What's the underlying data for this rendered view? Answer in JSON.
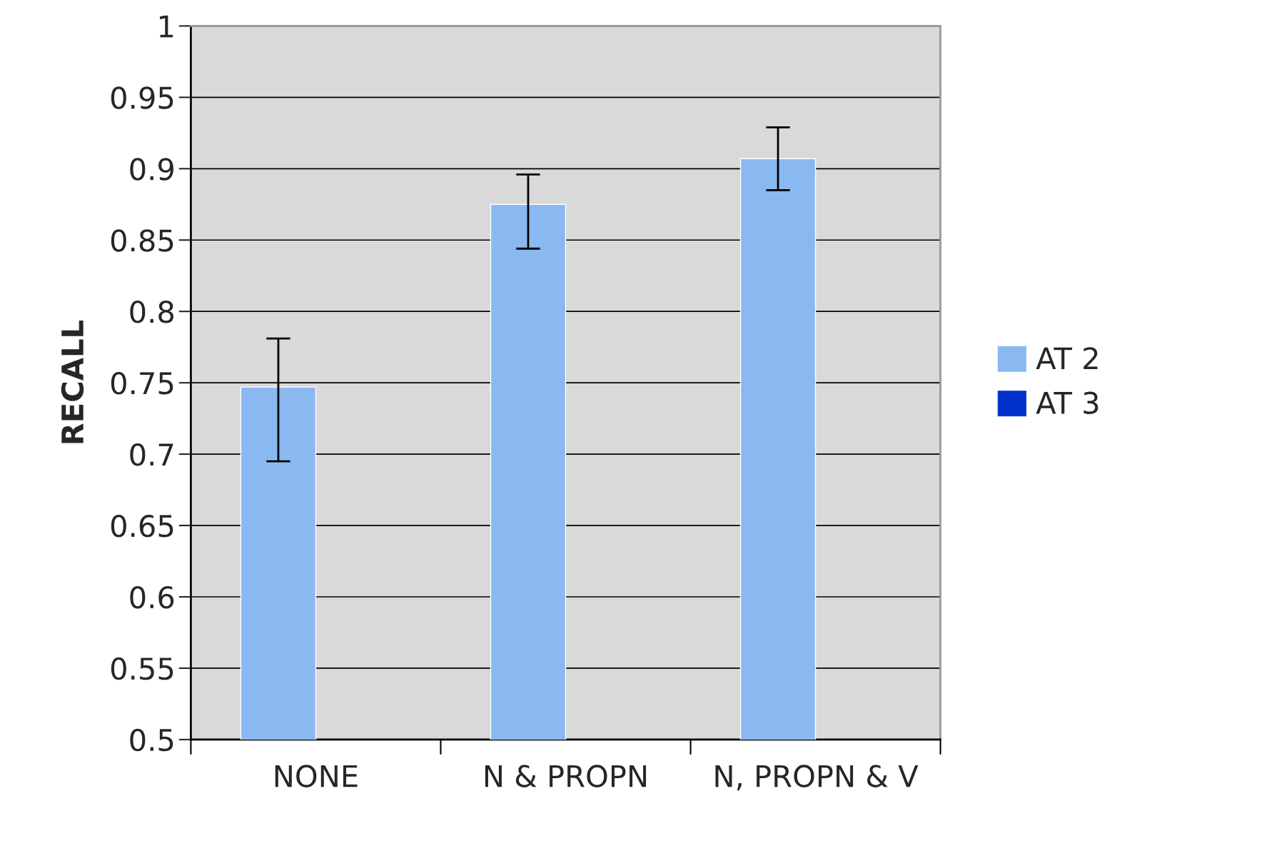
{
  "chart_data": {
    "type": "bar",
    "ylabel": "RECALL",
    "categories": [
      "NONE",
      "N & PROPN",
      "N, PROPN & V"
    ],
    "series": [
      {
        "name": "AT 2",
        "color": "#8ab9f1",
        "values": [
          0.747,
          0.875,
          0.907
        ],
        "errors": [
          [
            0.695,
            0.781
          ],
          [
            0.844,
            0.896
          ],
          [
            0.885,
            0.929
          ]
        ]
      },
      {
        "name": "AT 3",
        "color": "#0033cc",
        "values": [
          null,
          null,
          null
        ]
      }
    ],
    "ylim": [
      0.5,
      1
    ],
    "yticks": [
      0.5,
      0.55,
      0.6,
      0.65,
      0.7,
      0.75,
      0.8,
      0.85,
      0.9,
      0.95,
      1
    ],
    "grid": "y",
    "legend": "right"
  }
}
